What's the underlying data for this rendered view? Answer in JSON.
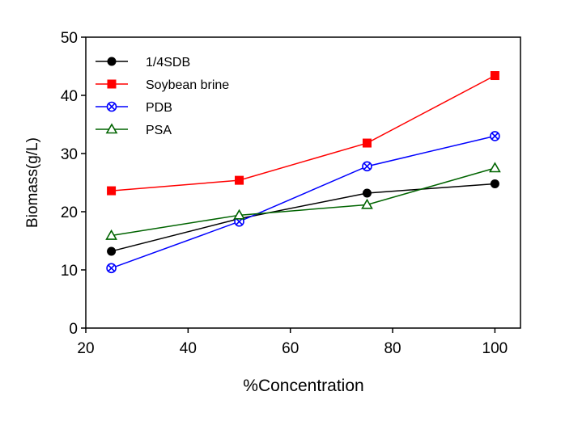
{
  "chart_data": {
    "type": "line",
    "title": "",
    "xlabel": "%Concentration",
    "ylabel": "Biomass(g/L)",
    "xlim": [
      20,
      105
    ],
    "ylim": [
      0,
      50
    ],
    "x_ticks": [
      20,
      40,
      60,
      80,
      100
    ],
    "y_ticks": [
      0,
      10,
      20,
      30,
      40,
      50
    ],
    "grid": false,
    "legend_position": "top-left",
    "x": [
      25,
      50,
      75,
      100
    ],
    "series": [
      {
        "name": "1/4SDB",
        "values": [
          13.2,
          18.8,
          23.2,
          24.8
        ],
        "color": "#000000",
        "marker": "filled-circle"
      },
      {
        "name": "Soybean brine",
        "values": [
          23.6,
          25.4,
          31.8,
          43.4
        ],
        "color": "#ff0000",
        "marker": "filled-square"
      },
      {
        "name": "PDB",
        "values": [
          10.3,
          18.3,
          27.8,
          33.0
        ],
        "color": "#0000ff",
        "marker": "crossed-circle"
      },
      {
        "name": "PSA",
        "values": [
          15.9,
          19.4,
          21.2,
          27.5
        ],
        "color": "#006400",
        "marker": "open-triangle"
      }
    ]
  }
}
